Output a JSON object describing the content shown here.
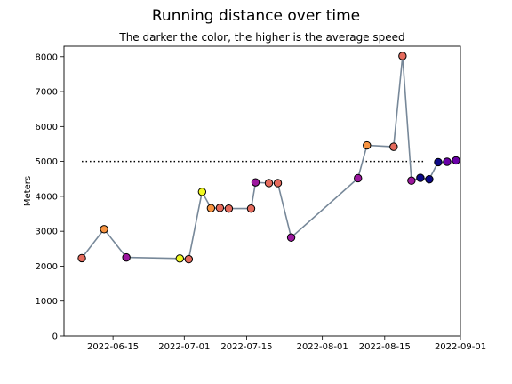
{
  "chart_data": {
    "type": "scatter",
    "title": "Running distance over time",
    "subtitle": "The darker the color, the higher is the average speed",
    "xlabel": "",
    "ylabel": "Meters",
    "x_range": [
      "2022-06-04",
      "2022-09-01"
    ],
    "y_range": [
      0,
      8300
    ],
    "x_ticks": [
      {
        "date": "2022-06-15",
        "label": "2022-06-15"
      },
      {
        "date": "2022-07-01",
        "label": "2022-07-01"
      },
      {
        "date": "2022-07-15",
        "label": "2022-07-15"
      },
      {
        "date": "2022-08-01",
        "label": "2022-08-01"
      },
      {
        "date": "2022-08-15",
        "label": "2022-08-15"
      },
      {
        "date": "2022-09-01",
        "label": "2022-09-01"
      }
    ],
    "y_ticks": [
      0,
      1000,
      2000,
      3000,
      4000,
      5000,
      6000,
      7000,
      8000
    ],
    "grid": false,
    "line_color": "#778899",
    "reference_line": {
      "y": 5000,
      "x_start": "2022-06-08",
      "x_end": "2022-08-24",
      "style": "dotted",
      "color": "#000000"
    },
    "points": [
      {
        "date": "2022-06-08",
        "meters": 2230,
        "color": "#e56b5d"
      },
      {
        "date": "2022-06-13",
        "meters": 3060,
        "color": "#f89441"
      },
      {
        "date": "2022-06-18",
        "meters": 2250,
        "color": "#9c179e"
      },
      {
        "date": "2022-06-30",
        "meters": 2220,
        "color": "#f0f921"
      },
      {
        "date": "2022-07-02",
        "meters": 2200,
        "color": "#e56b5d"
      },
      {
        "date": "2022-07-05",
        "meters": 4130,
        "color": "#f0f921"
      },
      {
        "date": "2022-07-07",
        "meters": 3660,
        "color": "#f89441"
      },
      {
        "date": "2022-07-09",
        "meters": 3670,
        "color": "#e56b5d"
      },
      {
        "date": "2022-07-11",
        "meters": 3650,
        "color": "#e56b5d"
      },
      {
        "date": "2022-07-16",
        "meters": 3650,
        "color": "#e56b5d"
      },
      {
        "date": "2022-07-17",
        "meters": 4400,
        "color": "#9c179e"
      },
      {
        "date": "2022-07-20",
        "meters": 4380,
        "color": "#e56b5d"
      },
      {
        "date": "2022-07-22",
        "meters": 4380,
        "color": "#e56b5d"
      },
      {
        "date": "2022-07-25",
        "meters": 2820,
        "color": "#9c179e"
      },
      {
        "date": "2022-08-09",
        "meters": 4520,
        "color": "#9c179e"
      },
      {
        "date": "2022-08-11",
        "meters": 5460,
        "color": "#f89441"
      },
      {
        "date": "2022-08-17",
        "meters": 5420,
        "color": "#e56b5d"
      },
      {
        "date": "2022-08-19",
        "meters": 8020,
        "color": "#e56b5d"
      },
      {
        "date": "2022-08-21",
        "meters": 4450,
        "color": "#9c179e"
      },
      {
        "date": "2022-08-23",
        "meters": 4530,
        "color": "#0d0887"
      },
      {
        "date": "2022-08-25",
        "meters": 4490,
        "color": "#0d0887"
      },
      {
        "date": "2022-08-27",
        "meters": 4980,
        "color": "#0d0887"
      },
      {
        "date": "2022-08-29",
        "meters": 4990,
        "color": "#6a00a8"
      },
      {
        "date": "2022-08-31",
        "meters": 5030,
        "color": "#6a00a8"
      }
    ]
  }
}
